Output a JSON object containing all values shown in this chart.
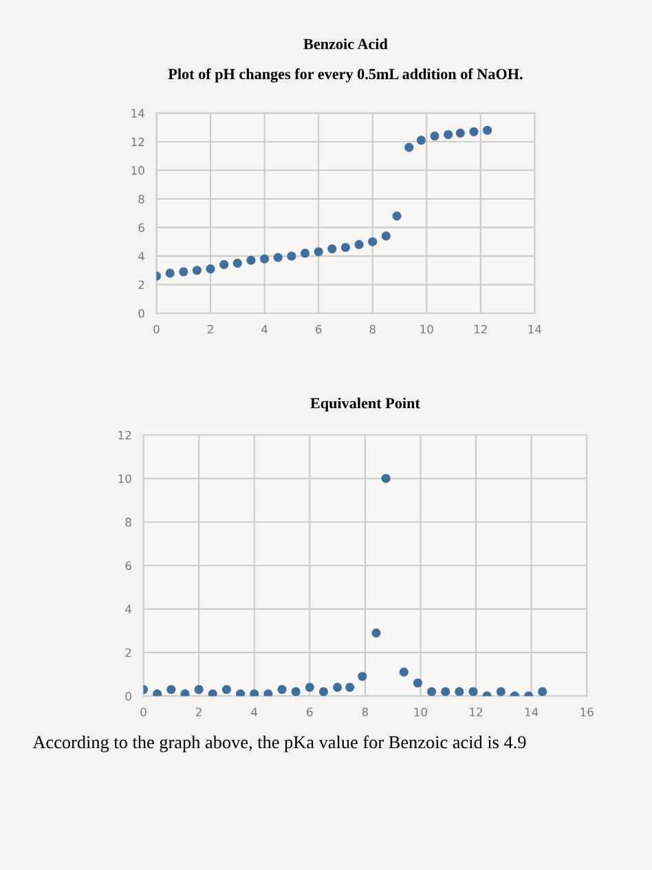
{
  "chart_data": [
    {
      "type": "scatter",
      "title": "Benzoic Acid",
      "subtitle": "Plot of pH changes for every 0.5mL addition of NaOH.",
      "x": [
        0,
        0.5,
        1,
        1.5,
        2,
        2.5,
        3,
        3.5,
        4,
        4.5,
        5,
        5.5,
        6,
        6.5,
        7,
        7.5,
        8,
        8.5,
        8.9,
        9.35,
        9.8,
        10.3,
        10.8,
        11.25,
        11.75,
        12.25
      ],
      "series": [
        {
          "color": "#3f6f9f",
          "values": [
            2.6,
            2.8,
            2.9,
            3.0,
            3.1,
            3.4,
            3.5,
            3.7,
            3.8,
            3.9,
            4.0,
            4.2,
            4.3,
            4.5,
            4.6,
            4.8,
            5.0,
            5.4,
            6.8,
            11.6,
            12.1,
            12.4,
            12.5,
            12.6,
            12.7,
            12.8
          ]
        }
      ],
      "xlim": [
        0,
        14
      ],
      "xticks": [
        0,
        2,
        4,
        6,
        8,
        10,
        12,
        14
      ],
      "ylim": [
        0,
        14
      ],
      "yticks": [
        0,
        2,
        4,
        6,
        8,
        10,
        12,
        14
      ],
      "grid": true,
      "marker": "circle"
    },
    {
      "type": "scatter",
      "title": "Equivalent Point",
      "x": [
        0,
        0.5,
        1,
        1.5,
        2,
        2.5,
        3,
        3.5,
        4,
        4.5,
        5,
        5.5,
        6,
        6.5,
        7,
        7.45,
        7.9,
        8.4,
        8.75,
        9.4,
        9.9,
        10.4,
        10.9,
        11.4,
        11.9,
        12.4,
        12.9,
        13.4,
        13.9,
        14.4
      ],
      "series": [
        {
          "color": "#3f6f9f",
          "values": [
            0.3,
            0.1,
            0.3,
            0.1,
            0.3,
            0.1,
            0.3,
            0.1,
            0.1,
            0.1,
            0.3,
            0.2,
            0.4,
            0.2,
            0.4,
            0.4,
            0.9,
            2.9,
            10.0,
            1.1,
            0.6,
            0.2,
            0.2,
            0.2,
            0.2,
            0.0,
            0.2,
            0.0,
            0.0,
            0.2
          ]
        }
      ],
      "xlim": [
        0,
        16
      ],
      "xticks": [
        0,
        2,
        4,
        6,
        8,
        10,
        12,
        14,
        16
      ],
      "ylim": [
        0,
        12
      ],
      "yticks": [
        0,
        2,
        4,
        6,
        8,
        10,
        12
      ],
      "grid": true,
      "marker": "circle",
      "annotations": [
        "According to the graph above, the pKa value for Benzoic acid is 4.9"
      ]
    }
  ]
}
